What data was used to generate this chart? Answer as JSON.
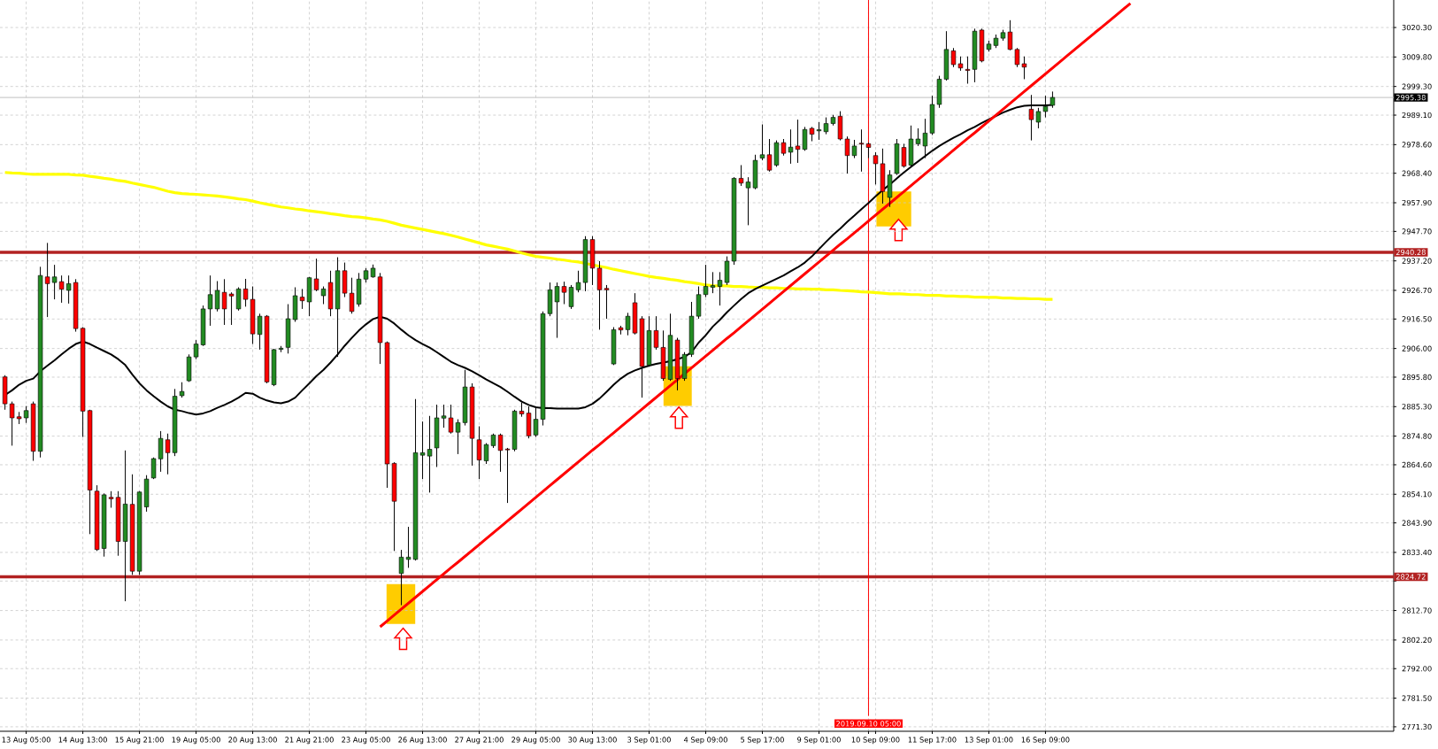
{
  "chart_data": {
    "type": "candlestick",
    "categories": [
      null,
      null,
      null,
      "13 Aug 05:00",
      null,
      null,
      null,
      null,
      null,
      null,
      null,
      "14 Aug 13:00",
      null,
      null,
      null,
      null,
      null,
      null,
      null,
      "15 Aug 21:00",
      null,
      null,
      null,
      null,
      null,
      null,
      null,
      "19 Aug 05:00",
      null,
      null,
      null,
      null,
      null,
      null,
      null,
      "20 Aug 13:00",
      null,
      null,
      null,
      null,
      null,
      null,
      null,
      "21 Aug 21:00",
      null,
      null,
      null,
      null,
      null,
      null,
      null,
      "23 Aug 05:00",
      null,
      null,
      null,
      null,
      null,
      null,
      null,
      "26 Aug 13:00",
      null,
      null,
      null,
      null,
      null,
      null,
      null,
      "27 Aug 21:00",
      null,
      null,
      null,
      null,
      null,
      null,
      null,
      "29 Aug 05:00",
      null,
      null,
      null,
      null,
      null,
      null,
      null,
      "30 Aug 13:00",
      null,
      null,
      null,
      null,
      null,
      null,
      null,
      "3 Sep 01:00",
      null,
      null,
      null,
      null,
      null,
      null,
      null,
      "4 Sep 09:00",
      null,
      null,
      null,
      null,
      null,
      null,
      null,
      "5 Sep 17:00",
      null,
      null,
      null,
      null,
      null,
      null,
      null,
      "9 Sep 01:00",
      null,
      null,
      null,
      null,
      null,
      null,
      "2019.09.10 05:00",
      "10 Sep 09:00",
      null,
      null,
      null,
      null,
      null,
      null,
      null,
      "11 Sep 17:00",
      null,
      null,
      null,
      null,
      null,
      null,
      null,
      "13 Sep 01:00",
      null,
      null,
      null,
      null,
      null,
      null,
      null,
      "16 Sep 09:00",
      null,
      null,
      null,
      null,
      null,
      null,
      null,
      null,
      null,
      null,
      null,
      null,
      null,
      null,
      null,
      null,
      null,
      null,
      null,
      null,
      null,
      null,
      null,
      null,
      null,
      null,
      null,
      null,
      null,
      null,
      null,
      null,
      null,
      null,
      null,
      null,
      null,
      null,
      null,
      null,
      null,
      null,
      null,
      null,
      null,
      null,
      null,
      null,
      null
    ],
    "ohlc": [
      [
        2895.9,
        2896.5,
        2884.2,
        2886.3
      ],
      [
        2886.3,
        2887.1,
        2871.4,
        2881.3
      ],
      [
        2881.7,
        2883.4,
        2879.1,
        2881.0
      ],
      [
        2881.3,
        2885.5,
        2879.5,
        2883.9
      ],
      [
        2886.3,
        2887.1,
        2866.0,
        2869.4
      ],
      [
        2869.4,
        2935.1,
        2867.2,
        2932.0
      ],
      [
        2931.5,
        2943.6,
        2917.2,
        2929.1
      ],
      [
        2929.5,
        2935.8,
        2923.5,
        2931.5
      ],
      [
        2929.8,
        2932.0,
        2922.3,
        2927.1
      ],
      [
        2926.7,
        2932.0,
        2922.0,
        2929.1
      ],
      [
        2929.5,
        2930.7,
        2912.0,
        2913.1
      ],
      [
        2913.2,
        2913.6,
        2874.5,
        2883.7
      ],
      [
        2883.9,
        2884.2,
        2839.9,
        2855.6
      ],
      [
        2855.2,
        2857.3,
        2833.9,
        2834.4
      ],
      [
        2834.8,
        2854.4,
        2831.9,
        2853.9
      ],
      [
        2853.0,
        2855.2,
        2849.3,
        2852.5
      ],
      [
        2853.0,
        2855.2,
        2832.2,
        2837.3
      ],
      [
        2837.3,
        2869.7,
        2816.0,
        2850.6
      ],
      [
        2850.5,
        2861.2,
        2825.4,
        2826.7
      ],
      [
        2826.7,
        2855.2,
        2825.4,
        2854.9
      ],
      [
        2849.6,
        2860.9,
        2847.9,
        2859.5
      ],
      [
        2859.9,
        2867.2,
        2859.5,
        2866.8
      ],
      [
        2866.7,
        2876.6,
        2862.1,
        2874.0
      ],
      [
        2873.5,
        2875.7,
        2861.2,
        2868.9
      ],
      [
        2868.9,
        2891.6,
        2867.7,
        2889.0
      ],
      [
        2889.2,
        2894.0,
        2888.5,
        2890.7
      ],
      [
        2894.5,
        2903.9,
        2894.1,
        2903.0
      ],
      [
        2903.0,
        2909.0,
        2902.2,
        2907.6
      ],
      [
        2907.3,
        2921.3,
        2906.9,
        2920.1
      ],
      [
        2920.1,
        2932.0,
        2914.1,
        2925.2
      ],
      [
        2920.1,
        2930.0,
        2919.2,
        2926.7
      ],
      [
        2926.0,
        2930.7,
        2914.4,
        2920.1
      ],
      [
        2925.4,
        2926.0,
        2914.4,
        2924.7
      ],
      [
        2920.1,
        2927.8,
        2919.5,
        2927.2
      ],
      [
        2927.2,
        2930.8,
        2920.9,
        2923.5
      ],
      [
        2923.5,
        2928.1,
        2907.6,
        2911.2
      ],
      [
        2911.0,
        2918.4,
        2905.6,
        2917.5
      ],
      [
        2917.5,
        2917.9,
        2893.6,
        2894.1
      ],
      [
        2893.1,
        2905.9,
        2892.6,
        2905.6
      ],
      [
        2905.7,
        2906.9,
        2904.7,
        2906.1
      ],
      [
        2906.4,
        2921.8,
        2904.2,
        2916.6
      ],
      [
        2916.3,
        2927.8,
        2915.5,
        2924.8
      ],
      [
        2924.3,
        2927.2,
        2920.1,
        2923.0
      ],
      [
        2922.6,
        2931.5,
        2917.5,
        2931.2
      ],
      [
        2930.8,
        2938.0,
        2926.4,
        2926.9
      ],
      [
        2924.8,
        2928.1,
        2921.8,
        2927.2
      ],
      [
        2929.5,
        2933.7,
        2917.5,
        2920.1
      ],
      [
        2920.1,
        2938.5,
        2903.0,
        2933.7
      ],
      [
        2933.7,
        2936.6,
        2924.3,
        2925.7
      ],
      [
        2925.7,
        2931.2,
        2918.4,
        2919.2
      ],
      [
        2921.8,
        2932.9,
        2920.9,
        2930.7
      ],
      [
        2930.7,
        2934.6,
        2929.5,
        2933.7
      ],
      [
        2931.5,
        2935.9,
        2931.2,
        2934.6
      ],
      [
        2931.5,
        2932.9,
        2900.5,
        2908.1
      ],
      [
        2908.1,
        2908.5,
        2856.4,
        2864.9
      ],
      [
        2865.1,
        2865.5,
        2833.9,
        2851.6
      ],
      [
        2825.9,
        2834.3,
        2814.6,
        2831.7
      ],
      [
        2830.9,
        2842.5,
        2827.9,
        2831.7
      ],
      [
        2830.9,
        2888.0,
        2830.5,
        2868.9
      ],
      [
        2868.0,
        2880.0,
        2859.5,
        2868.9
      ],
      [
        2867.7,
        2882.0,
        2854.7,
        2870.1
      ],
      [
        2870.6,
        2886.0,
        2863.8,
        2881.3
      ],
      [
        2881.2,
        2886.0,
        2877.8,
        2882.0
      ],
      [
        2881.3,
        2886.0,
        2875.7,
        2876.2
      ],
      [
        2876.2,
        2880.8,
        2868.4,
        2879.6
      ],
      [
        2879.6,
        2898.4,
        2878.6,
        2892.3
      ],
      [
        2892.3,
        2893.6,
        2864.3,
        2874.0
      ],
      [
        2873.5,
        2878.3,
        2859.5,
        2866.3
      ],
      [
        2866.0,
        2872.3,
        2864.9,
        2871.8
      ],
      [
        2871.4,
        2875.7,
        2870.6,
        2875.2
      ],
      [
        2875.2,
        2875.7,
        2862.1,
        2869.7
      ],
      [
        2870.2,
        2870.6,
        2851.0,
        2869.9
      ],
      [
        2870.1,
        2884.2,
        2869.4,
        2883.7
      ],
      [
        2883.7,
        2886.8,
        2881.7,
        2882.7
      ],
      [
        2883.0,
        2885.4,
        2874.0,
        2874.9
      ],
      [
        2875.2,
        2885.4,
        2874.5,
        2880.8
      ],
      [
        2880.8,
        2919.2,
        2878.6,
        2918.4
      ],
      [
        2918.4,
        2929.5,
        2917.5,
        2926.9
      ],
      [
        2922.6,
        2929.5,
        2909.8,
        2928.1
      ],
      [
        2928.1,
        2929.8,
        2921.8,
        2926.0
      ],
      [
        2920.9,
        2928.6,
        2920.1,
        2927.8
      ],
      [
        2926.9,
        2933.7,
        2926.0,
        2929.5
      ],
      [
        2929.5,
        2946.0,
        2926.4,
        2944.8
      ],
      [
        2944.8,
        2946.0,
        2928.6,
        2934.6
      ],
      [
        2934.6,
        2937.1,
        2912.7,
        2926.9
      ],
      [
        2927.4,
        2928.6,
        2916.6,
        2926.9
      ],
      [
        2900.5,
        2913.6,
        2900.1,
        2912.7
      ],
      [
        2913.4,
        2914.1,
        2911.0,
        2912.6
      ],
      [
        2912.7,
        2918.7,
        2910.7,
        2917.5
      ],
      [
        2922.3,
        2925.7,
        2911.0,
        2911.5
      ],
      [
        2916.6,
        2917.5,
        2888.5,
        2899.6
      ],
      [
        2900.1,
        2917.5,
        2899.6,
        2912.4
      ],
      [
        2912.4,
        2917.5,
        2905.6,
        2906.4
      ],
      [
        2906.4,
        2912.4,
        2894.5,
        2895.3
      ],
      [
        2895.0,
        2918.4,
        2894.5,
        2910.7
      ],
      [
        2909.0,
        2909.8,
        2891.1,
        2895.3
      ],
      [
        2895.3,
        2904.7,
        2894.5,
        2903.9
      ],
      [
        2903.9,
        2922.6,
        2903.0,
        2917.5
      ],
      [
        2917.5,
        2928.1,
        2916.6,
        2925.2
      ],
      [
        2925.2,
        2935.8,
        2924.3,
        2928.1
      ],
      [
        2927.8,
        2933.2,
        2925.7,
        2928.4
      ],
      [
        2928.1,
        2933.2,
        2921.3,
        2930.3
      ],
      [
        2929.5,
        2938.8,
        2928.6,
        2937.1
      ],
      [
        2937.1,
        2967.0,
        2935.8,
        2966.6
      ],
      [
        2966.6,
        2971.3,
        2963.9,
        2964.9
      ],
      [
        2963.2,
        2967.0,
        2949.9,
        2965.3
      ],
      [
        2963.2,
        2975.0,
        2962.7,
        2973.0
      ],
      [
        2973.8,
        2985.8,
        2973.0,
        2975.0
      ],
      [
        2975.0,
        2980.6,
        2969.0,
        2969.5
      ],
      [
        2971.3,
        2980.1,
        2970.7,
        2979.3
      ],
      [
        2979.3,
        2980.6,
        2974.7,
        2975.5
      ],
      [
        2975.9,
        2984.0,
        2971.8,
        2977.7
      ],
      [
        2978.1,
        2987.5,
        2972.1,
        2976.9
      ],
      [
        2976.9,
        2984.9,
        2976.4,
        2984.0
      ],
      [
        2984.4,
        2984.9,
        2979.8,
        2982.3
      ],
      [
        2983.5,
        2986.6,
        2980.3,
        2983.9
      ],
      [
        2983.2,
        2988.3,
        2982.3,
        2986.1
      ],
      [
        2986.1,
        2989.2,
        2985.4,
        2988.3
      ],
      [
        2988.7,
        2990.5,
        2980.1,
        2980.6
      ],
      [
        2980.6,
        2981.5,
        2968.3,
        2974.7
      ],
      [
        2974.7,
        2980.3,
        2973.8,
        2978.1
      ],
      [
        2979.1,
        2984.0,
        2969.0,
        2978.8
      ],
      [
        2978.9,
        2979.3,
        2973.8,
        2977.6
      ],
      [
        2974.7,
        2975.9,
        2964.4,
        2971.8
      ],
      [
        2971.8,
        2977.2,
        2957.6,
        2961.9
      ],
      [
        2959.8,
        2969.5,
        2956.4,
        2967.8
      ],
      [
        2968.3,
        2980.6,
        2967.8,
        2978.9
      ],
      [
        2977.6,
        2978.9,
        2970.4,
        2970.9
      ],
      [
        2971.3,
        2985.4,
        2970.7,
        2980.6
      ],
      [
        2978.9,
        2984.4,
        2978.1,
        2980.6
      ],
      [
        2978.1,
        2987.8,
        2973.8,
        2982.7
      ],
      [
        2982.7,
        2996.0,
        2982.0,
        2992.9
      ],
      [
        2992.9,
        3003.1,
        2991.7,
        3001.9
      ],
      [
        3001.9,
        3019.0,
        3001.4,
        3012.5
      ],
      [
        3012.0,
        3013.0,
        3006.2,
        3007.1
      ],
      [
        3007.4,
        3010.0,
        3004.9,
        3005.9
      ],
      [
        3005.4,
        3010.0,
        3000.3,
        3005.0
      ],
      [
        3005.4,
        3019.9,
        3000.8,
        3019.0
      ],
      [
        3019.4,
        3019.9,
        3007.9,
        3008.4
      ],
      [
        3012.5,
        3015.6,
        3011.7,
        3014.4
      ],
      [
        3013.9,
        3017.8,
        3013.0,
        3016.5
      ],
      [
        3016.5,
        3019.5,
        3015.6,
        3018.5
      ],
      [
        3018.7,
        3022.9,
        3012.2,
        3012.5
      ],
      [
        3012.5,
        3013.0,
        3006.2,
        3007.1
      ],
      [
        3007.4,
        3010.0,
        3001.9,
        3006.2
      ],
      [
        2991.2,
        2996.3,
        2980.1,
        2987.5
      ],
      [
        2986.6,
        2991.7,
        2984.4,
        2990.4
      ],
      [
        2990.4,
        2996.0,
        2988.3,
        2992.2
      ],
      [
        2992.6,
        2997.5,
        2991.7,
        2995.4
      ],
      null,
      null,
      null,
      null,
      null,
      null,
      null,
      null,
      null,
      null,
      null,
      null,
      null,
      null,
      null,
      null,
      null,
      null,
      null,
      null,
      null,
      null,
      null,
      null,
      null,
      null,
      null,
      null,
      null,
      null,
      null,
      null,
      null,
      null,
      null,
      null,
      null,
      null,
      null,
      null,
      null,
      null,
      null,
      null,
      null,
      null,
      null,
      null
    ],
    "colors": [
      "#ff0000",
      "#ff0000",
      "#ff0000",
      "#228b22",
      "#ff0000",
      "#228b22",
      "#ff0000",
      "#228b22",
      "#ff0000",
      "#228b22",
      "#ff0000",
      "#ff0000",
      "#ff0000",
      "#ff0000",
      "#228b22",
      "#ff0000",
      "#ff0000",
      "#228b22",
      "#ff0000",
      "#228b22",
      "#228b22",
      "#228b22",
      "#228b22",
      "#ff0000",
      "#228b22",
      "#228b22",
      "#228b22",
      "#228b22",
      "#228b22",
      "#228b22",
      "#228b22",
      "#ff0000",
      "#ff0000",
      "#228b22",
      "#ff0000",
      "#ff0000",
      "#228b22",
      "#ff0000",
      "#228b22",
      "#228b22",
      "#228b22",
      "#228b22",
      "#ff0000",
      "#228b22",
      "#ff0000",
      "#228b22",
      "#ff0000",
      "#228b22",
      "#ff0000",
      "#ff0000",
      "#228b22",
      "#228b22",
      "#228b22",
      "#ff0000",
      "#ff0000",
      "#ff0000",
      "#228b22",
      "#228b22",
      "#228b22",
      "#228b22",
      "#228b22",
      "#228b22",
      "#228b22",
      "#ff0000",
      "#228b22",
      "#228b22",
      "#ff0000",
      "#ff0000",
      "#228b22",
      "#228b22",
      "#ff0000",
      "#ff0000",
      "#228b22",
      "#ff0000",
      "#ff0000",
      "#228b22",
      "#228b22",
      "#228b22",
      "#228b22",
      "#ff0000",
      "#228b22",
      "#228b22",
      "#228b22",
      "#ff0000",
      "#ff0000",
      "#ff0000",
      "#228b22",
      "#ff0000",
      "#228b22",
      "#ff0000",
      "#ff0000",
      "#228b22",
      "#ff0000",
      "#ff0000",
      "#228b22",
      "#ff0000",
      "#228b22",
      "#228b22",
      "#228b22",
      "#228b22",
      "#228b22",
      "#228b22",
      "#228b22",
      "#228b22",
      "#ff0000",
      "#228b22",
      "#228b22",
      "#228b22",
      "#ff0000",
      "#228b22",
      "#ff0000",
      "#228b22",
      "#ff0000",
      "#228b22",
      "#ff0000",
      "#228b22",
      "#228b22",
      "#228b22",
      "#ff0000",
      "#ff0000",
      "#228b22",
      "#ff0000",
      "#ff0000",
      "#ff0000",
      "#ff0000",
      "#228b22",
      "#228b22",
      "#ff0000",
      "#228b22",
      "#228b22",
      "#228b22",
      "#228b22",
      "#228b22",
      "#228b22",
      "#ff0000",
      "#ff0000",
      "#ff0000",
      "#228b22",
      "#ff0000",
      "#228b22",
      "#228b22",
      "#228b22",
      "#ff0000",
      "#ff0000",
      "#ff0000",
      "#ff0000",
      "#228b22",
      "#228b22",
      "#228b22",
      null,
      null,
      null,
      null,
      null,
      null,
      null,
      null,
      null,
      null,
      null,
      null,
      null,
      null,
      null,
      null,
      null,
      null,
      null,
      null,
      null,
      null,
      null,
      null,
      null,
      null,
      null,
      null,
      null,
      null,
      null,
      null,
      null,
      null,
      null,
      null,
      null,
      null,
      null,
      null,
      null,
      null,
      null,
      null,
      null,
      null,
      null,
      null
    ],
    "series": [
      {
        "type": "line",
        "color": "#ffff00",
        "values": [
          2968.7,
          2968.5,
          2968.4,
          2968.2,
          2968.0,
          2968.0,
          2968.0,
          2968.0,
          2968.0,
          2968.0,
          2967.8,
          2967.7,
          2967.3,
          2967.0,
          2966.6,
          2966.3,
          2965.8,
          2965.5,
          2964.9,
          2964.4,
          2963.9,
          2963.4,
          2962.7,
          2962.0,
          2961.5,
          2961.2,
          2961.0,
          2960.9,
          2960.7,
          2960.5,
          2960.3,
          2960.0,
          2959.7,
          2959.3,
          2959.0,
          2958.5,
          2957.9,
          2957.4,
          2956.9,
          2956.4,
          2956.1,
          2955.7,
          2955.4,
          2955.0,
          2954.7,
          2954.4,
          2954.0,
          2953.7,
          2953.3,
          2953.0,
          2952.8,
          2952.5,
          2952.1,
          2951.8,
          2951.3,
          2950.6,
          2949.9,
          2949.4,
          2948.9,
          2948.4,
          2947.9,
          2947.4,
          2946.9,
          2946.3,
          2945.7,
          2945.0,
          2944.3,
          2943.6,
          2942.9,
          2942.4,
          2941.9,
          2941.4,
          2940.7,
          2940.0,
          2939.4,
          2938.8,
          2938.5,
          2938.2,
          2937.8,
          2937.5,
          2937.1,
          2936.8,
          2936.3,
          2935.8,
          2935.3,
          2934.8,
          2934.2,
          2933.7,
          2933.2,
          2932.7,
          2932.2,
          2931.7,
          2931.3,
          2931.0,
          2930.6,
          2930.3,
          2929.8,
          2929.5,
          2929.1,
          2928.6,
          2928.4,
          2928.3,
          2928.3,
          2928.1,
          2928.1,
          2927.9,
          2927.8,
          2927.8,
          2927.6,
          2927.6,
          2927.4,
          2927.4,
          2927.2,
          2927.2,
          2927.1,
          2927.1,
          2926.9,
          2926.9,
          2926.7,
          2926.6,
          2926.4,
          2926.2,
          2926.1,
          2925.9,
          2925.7,
          2925.5,
          2925.5,
          2925.4,
          2925.2,
          2925.2,
          2925.0,
          2924.9,
          2924.9,
          2924.7,
          2924.7,
          2924.5,
          2924.5,
          2924.3,
          2924.3,
          2924.2,
          2924.2,
          2924.0,
          2924.0,
          2923.8,
          2923.8,
          2923.7,
          2923.7,
          2923.5,
          2923.5,
          null,
          null,
          null,
          null,
          null,
          null,
          null,
          null,
          null,
          null,
          null,
          null,
          null,
          null,
          null,
          null,
          null,
          null,
          null,
          null,
          null,
          null,
          null,
          null,
          null,
          null,
          null,
          null,
          null,
          null,
          null,
          null,
          null,
          null,
          null,
          null,
          null,
          null,
          null,
          null,
          null,
          null,
          null,
          null,
          null,
          null,
          null,
          null
        ]
      },
      {
        "type": "line",
        "color": "#000000",
        "values": [
          2889.4,
          2891.1,
          2893.1,
          2894.5,
          2895.3,
          2897.9,
          2899.9,
          2901.8,
          2903.9,
          2905.9,
          2907.6,
          2908.5,
          2907.6,
          2906.3,
          2905.1,
          2903.9,
          2902.2,
          2900.1,
          2896.7,
          2893.6,
          2891.1,
          2889.0,
          2887.1,
          2885.4,
          2884.2,
          2883.7,
          2883.0,
          2882.5,
          2882.9,
          2883.7,
          2884.9,
          2885.9,
          2887.1,
          2888.5,
          2890.2,
          2889.9,
          2888.5,
          2887.5,
          2886.8,
          2886.5,
          2887.1,
          2888.5,
          2891.1,
          2893.6,
          2896.2,
          2898.4,
          2901.0,
          2903.9,
          2907.0,
          2909.8,
          2912.4,
          2914.6,
          2916.5,
          2917.3,
          2916.6,
          2914.9,
          2912.7,
          2910.7,
          2909.0,
          2907.6,
          2906.3,
          2904.7,
          2903.0,
          2901.3,
          2900.1,
          2899.1,
          2897.9,
          2896.5,
          2895.0,
          2893.6,
          2892.3,
          2890.6,
          2888.8,
          2887.1,
          2885.9,
          2885.1,
          2884.8,
          2884.8,
          2884.6,
          2884.6,
          2884.6,
          2884.6,
          2885.1,
          2886.3,
          2888.2,
          2890.6,
          2893.1,
          2895.3,
          2897.0,
          2898.2,
          2899.1,
          2899.9,
          2900.5,
          2901.0,
          2901.5,
          2902.2,
          2903.0,
          2904.7,
          2908.1,
          2910.7,
          2913.8,
          2916.2,
          2918.9,
          2921.3,
          2923.6,
          2925.7,
          2927.2,
          2928.4,
          2929.6,
          2930.8,
          2932.0,
          2933.5,
          2934.9,
          2936.6,
          2938.8,
          2941.4,
          2944.0,
          2946.5,
          2948.7,
          2951.1,
          2953.3,
          2955.6,
          2957.8,
          2960.2,
          2962.4,
          2964.4,
          2966.6,
          2968.7,
          2970.7,
          2972.6,
          2974.5,
          2976.4,
          2978.1,
          2979.6,
          2981.0,
          2982.3,
          2983.7,
          2984.9,
          2986.3,
          2987.6,
          2988.8,
          2990.0,
          2991.0,
          2991.9,
          2992.4,
          2992.6,
          2992.6,
          2992.6,
          2992.7,
          null,
          null,
          null,
          null,
          null,
          null,
          null,
          null,
          null,
          null,
          null,
          null,
          null,
          null,
          null,
          null,
          null,
          null,
          null,
          null,
          null,
          null,
          null,
          null,
          null,
          null,
          null,
          null,
          null,
          null,
          null,
          null,
          null,
          null,
          null,
          null,
          null,
          null,
          null,
          null,
          null,
          null,
          null,
          null,
          null,
          null,
          null,
          null
        ]
      },
      {
        "type": "line",
        "color": "#ff0000",
        "values": [
          null,
          null,
          null,
          null,
          null,
          null,
          null,
          null,
          null,
          null,
          null,
          null,
          null,
          null,
          null,
          null,
          null,
          null,
          null,
          null,
          null,
          null,
          null,
          null,
          null,
          null,
          null,
          null,
          null,
          null,
          null,
          null,
          null,
          null,
          null,
          null,
          null,
          null,
          null,
          null,
          null,
          null,
          null,
          null,
          null,
          null,
          null,
          null,
          null,
          null,
          null,
          null,
          null,
          2806.9,
          2809.0,
          2811.1,
          2813.2,
          2815.3,
          2817.4,
          2819.5,
          2821.6,
          2823.7,
          2825.8,
          2827.9,
          2829.9,
          2832.0,
          2834.1,
          2836.2,
          2838.3,
          2840.4,
          2842.5,
          2844.6,
          2846.7,
          2848.8,
          2850.9,
          2853.0,
          2855.1,
          2857.2,
          2859.3,
          2861.4,
          2863.5,
          2865.6,
          2867.7,
          2869.8,
          2871.8,
          2873.9,
          2876.0,
          2878.1,
          2880.2,
          2882.3,
          2884.4,
          2886.5,
          2888.6,
          2890.7,
          2892.8,
          2894.9,
          2897.0,
          2899.1,
          2901.2,
          2903.3,
          2905.4,
          2907.5,
          2909.6,
          2911.6,
          2913.7,
          2915.8,
          2917.9,
          2920.0,
          2922.1,
          2924.2,
          2926.3,
          2928.4,
          2930.5,
          2932.6,
          2934.7,
          2936.8,
          2938.9,
          2941.0,
          2943.1,
          2945.1,
          2947.2,
          2949.3,
          2951.4,
          2953.5,
          2955.6,
          2957.7,
          2959.8,
          2961.9,
          2964.0,
          2966.1,
          2968.2,
          2970.3,
          2972.4,
          2974.5,
          2976.6,
          2978.7,
          2980.8,
          2982.8,
          2984.9,
          2987.0,
          2989.1,
          2991.2,
          2993.3,
          2995.4,
          2997.5,
          2999.6,
          3001.7,
          3003.8,
          3005.9,
          3008.0,
          3010.1,
          3012.2,
          3014.3,
          3016.4,
          3018.5,
          3020.5,
          3022.6,
          3024.7,
          3026.8,
          3028.9,
          null,
          null,
          null,
          null,
          null,
          null,
          null,
          null,
          null,
          null,
          null,
          null,
          null,
          null,
          null,
          null,
          null,
          null,
          null,
          null,
          null,
          null,
          null,
          null,
          null,
          null,
          null,
          null,
          null,
          null,
          null,
          null,
          null,
          null,
          null,
          null,
          null
        ]
      }
    ],
    "ylim": [
      2769.7,
      3030.1
    ],
    "yticks": [
      {
        "value": 3020.3,
        "label": "3020.30"
      },
      {
        "value": 3009.8,
        "label": "3009.80"
      },
      {
        "value": 2999.3,
        "label": "2999.30"
      },
      {
        "value": 2989.1,
        "label": "2989.10"
      },
      {
        "value": 2978.6,
        "label": "2978.60"
      },
      {
        "value": 2968.4,
        "label": "2968.40"
      },
      {
        "value": 2957.9,
        "label": "2957.90"
      },
      {
        "value": 2947.7,
        "label": "2947.70"
      },
      {
        "value": 2937.2,
        "label": "2937.20"
      },
      {
        "value": 2926.7,
        "label": "2926.70"
      },
      {
        "value": 2916.5,
        "label": "2916.50"
      },
      {
        "value": 2906.0,
        "label": "2906.00"
      },
      {
        "value": 2895.8,
        "label": "2895.80"
      },
      {
        "value": 2885.3,
        "label": "2885.30"
      },
      {
        "value": 2874.8,
        "label": "2874.80"
      },
      {
        "value": 2864.6,
        "label": "2864.60"
      },
      {
        "value": 2854.1,
        "label": "2854.10"
      },
      {
        "value": 2843.9,
        "label": "2843.90"
      },
      {
        "value": 2833.4,
        "label": "2833.40"
      },
      {
        "value": 2823.2,
        "label": null
      },
      {
        "value": 2812.7,
        "label": "2812.70"
      },
      {
        "value": 2802.2,
        "label": "2802.20"
      },
      {
        "value": 2792.0,
        "label": "2792.00"
      },
      {
        "value": 2781.5,
        "label": "2781.50"
      },
      {
        "value": 2771.3,
        "label": "2771.30"
      }
    ],
    "ref_lines": [
      {
        "axis": "y",
        "value": 2995.38,
        "label": "2995.38",
        "color": "#c0c0c0"
      },
      {
        "axis": "y",
        "value": 2940.28,
        "label": "2940.28",
        "color": "#b22222"
      },
      {
        "axis": "y",
        "value": 2824.72,
        "label": "2824.72",
        "color": "#b22222"
      },
      {
        "axis": "x",
        "value": "2019.09.10 05:00",
        "color": "#ff0000"
      }
    ],
    "grid": true
  }
}
